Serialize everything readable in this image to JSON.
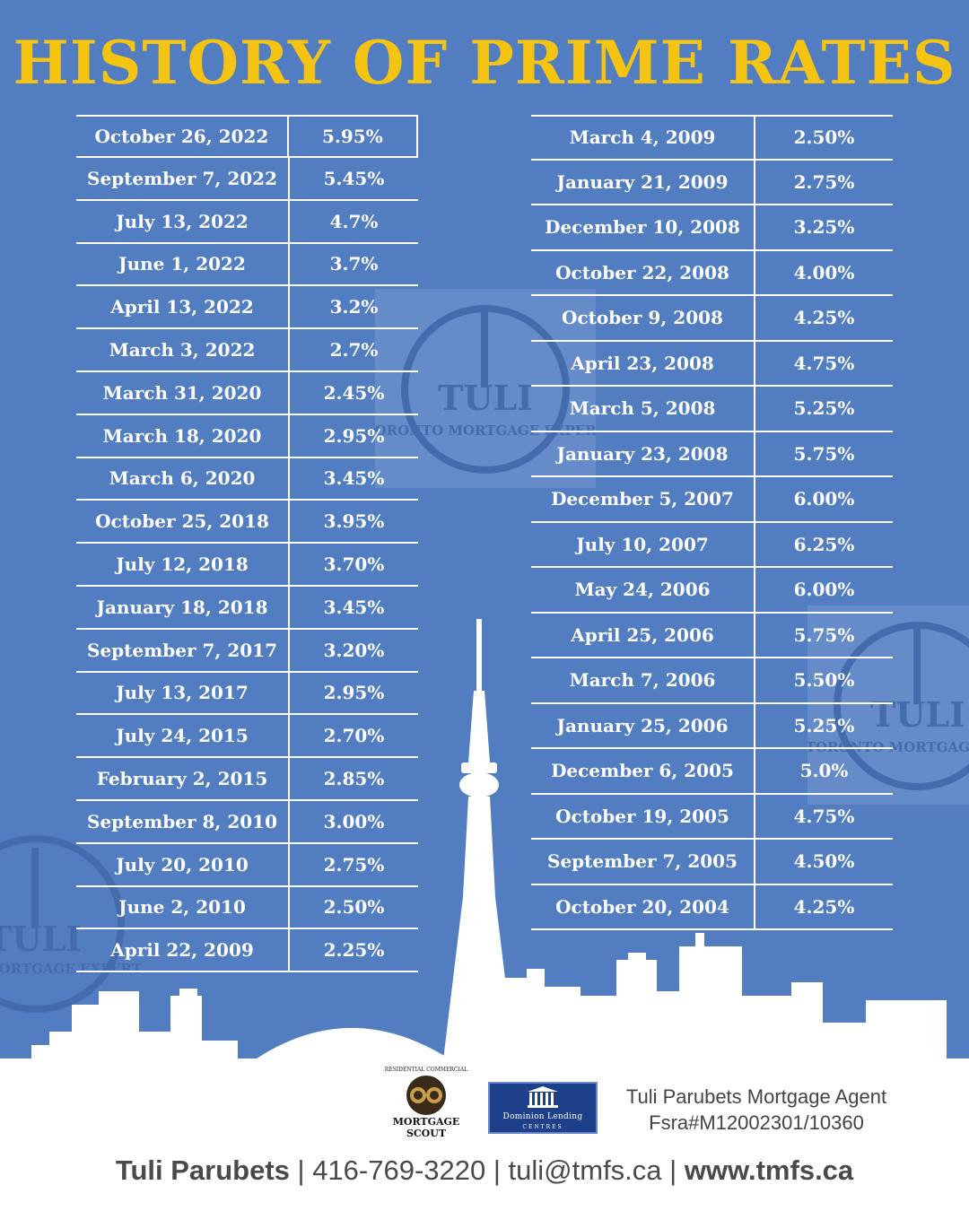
{
  "title": "HISTORY OF PRIME RATES",
  "left_table": [
    {
      "date": "October 26, 2022",
      "rate": "5.95%"
    },
    {
      "date": "September 7, 2022",
      "rate": "5.45%"
    },
    {
      "date": "July 13, 2022",
      "rate": "4.7%"
    },
    {
      "date": "June 1, 2022",
      "rate": "3.7%"
    },
    {
      "date": "April 13, 2022",
      "rate": "3.2%"
    },
    {
      "date": "March 3, 2022",
      "rate": "2.7%"
    },
    {
      "date": "March 31, 2020",
      "rate": "2.45%"
    },
    {
      "date": "March 18, 2020",
      "rate": "2.95%"
    },
    {
      "date": "March 6, 2020",
      "rate": "3.45%"
    },
    {
      "date": "October 25, 2018",
      "rate": "3.95%"
    },
    {
      "date": "July 12, 2018",
      "rate": "3.70%"
    },
    {
      "date": "January 18, 2018",
      "rate": "3.45%"
    },
    {
      "date": "September 7, 2017",
      "rate": "3.20%"
    },
    {
      "date": "July 13, 2017",
      "rate": "2.95%"
    },
    {
      "date": "July 24, 2015",
      "rate": "2.70%"
    },
    {
      "date": "February 2, 2015",
      "rate": "2.85%"
    },
    {
      "date": "September 8, 2010",
      "rate": "3.00%"
    },
    {
      "date": "July 20, 2010",
      "rate": "2.75%"
    },
    {
      "date": "June 2, 2010",
      "rate": "2.50%"
    },
    {
      "date": "April 22, 2009",
      "rate": "2.25%"
    }
  ],
  "right_table": [
    {
      "date": "March 4, 2009",
      "rate": "2.50%"
    },
    {
      "date": "January 21, 2009",
      "rate": "2.75%"
    },
    {
      "date": "December 10, 2008",
      "rate": "3.25%"
    },
    {
      "date": "October 22, 2008",
      "rate": "4.00%"
    },
    {
      "date": "October 9, 2008",
      "rate": "4.25%"
    },
    {
      "date": "April 23, 2008",
      "rate": "4.75%"
    },
    {
      "date": "March 5, 2008",
      "rate": "5.25%"
    },
    {
      "date": "January 23, 2008",
      "rate": "5.75%"
    },
    {
      "date": "December 5, 2007",
      "rate": "6.00%"
    },
    {
      "date": "July 10, 2007",
      "rate": "6.25%"
    },
    {
      "date": "May 24, 2006",
      "rate": "6.00%"
    },
    {
      "date": "April 25, 2006",
      "rate": "5.75%"
    },
    {
      "date": "March 7, 2006",
      "rate": "5.50%"
    },
    {
      "date": "January 25, 2006",
      "rate": "5.25%"
    },
    {
      "date": "December 6, 2005",
      "rate": "5.0%"
    },
    {
      "date": "October 19, 2005",
      "rate": "4.75%"
    },
    {
      "date": "September 7, 2005",
      "rate": "4.50%"
    },
    {
      "date": "October 20, 2004",
      "rate": "4.25%"
    }
  ],
  "watermark": {
    "brand": "TULI",
    "tagline": "TORONTO MORTGAGE EXPERT"
  },
  "logos": {
    "mortgage_scout": {
      "top": "RESIDENTIAL COMMERCIAL",
      "name_line1": "MORTGAGE",
      "name_line2": "SCOUT"
    },
    "dominion": {
      "name": "Dominion Lending",
      "sub": "CENTRES"
    }
  },
  "agent": {
    "name": "Tuli Parubets Mortgage Agent",
    "license": "Fsra#M12002301/10360"
  },
  "contact": {
    "name": "Tuli Parubets",
    "sep": " | ",
    "phone": "416-769-3220",
    "email": "tuli@tmfs.ca",
    "website": "www.tmfs.ca"
  },
  "colors": {
    "background": "#527dc1",
    "title": "#f5c311",
    "skyline": "#ffffff",
    "dlc_blue": "#1e3f8a"
  }
}
